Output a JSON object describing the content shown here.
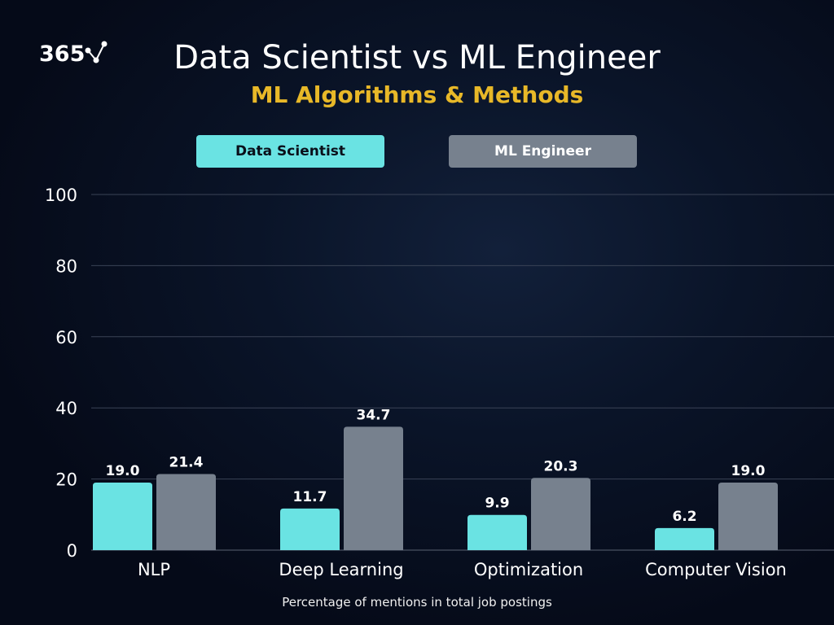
{
  "logo": {
    "text": "365"
  },
  "header": {
    "title": "Data Scientist vs ML Engineer",
    "subtitle": "ML Algorithms & Methods"
  },
  "footer": {
    "note": "Percentage of mentions in total job postings"
  },
  "colors": {
    "data_scientist": "#6ae3e3",
    "ml_engineer": "#77818e",
    "subtitle": "#e8b828"
  },
  "chart_data": {
    "type": "bar",
    "title": "Data Scientist vs ML Engineer",
    "subtitle": "ML Algorithms & Methods",
    "xlabel": "Percentage of mentions in total job postings",
    "ylabel": "",
    "categories": [
      "NLP",
      "Deep Learning",
      "Optimization",
      "Computer Vision"
    ],
    "series": [
      {
        "name": "Data Scientist",
        "values": [
          19.0,
          11.7,
          9.9,
          6.2
        ],
        "labels": [
          "19.0",
          "11.7",
          "9.9",
          "6.2"
        ]
      },
      {
        "name": "ML Engineer",
        "values": [
          21.4,
          34.7,
          20.3,
          19.0
        ],
        "labels": [
          "21.4",
          "34.7",
          "20.3",
          "19.0"
        ]
      }
    ],
    "ylim": [
      0,
      100
    ],
    "yticks": [
      "0",
      "20",
      "40",
      "60",
      "80",
      "100"
    ],
    "grid": true,
    "legend": "top"
  }
}
